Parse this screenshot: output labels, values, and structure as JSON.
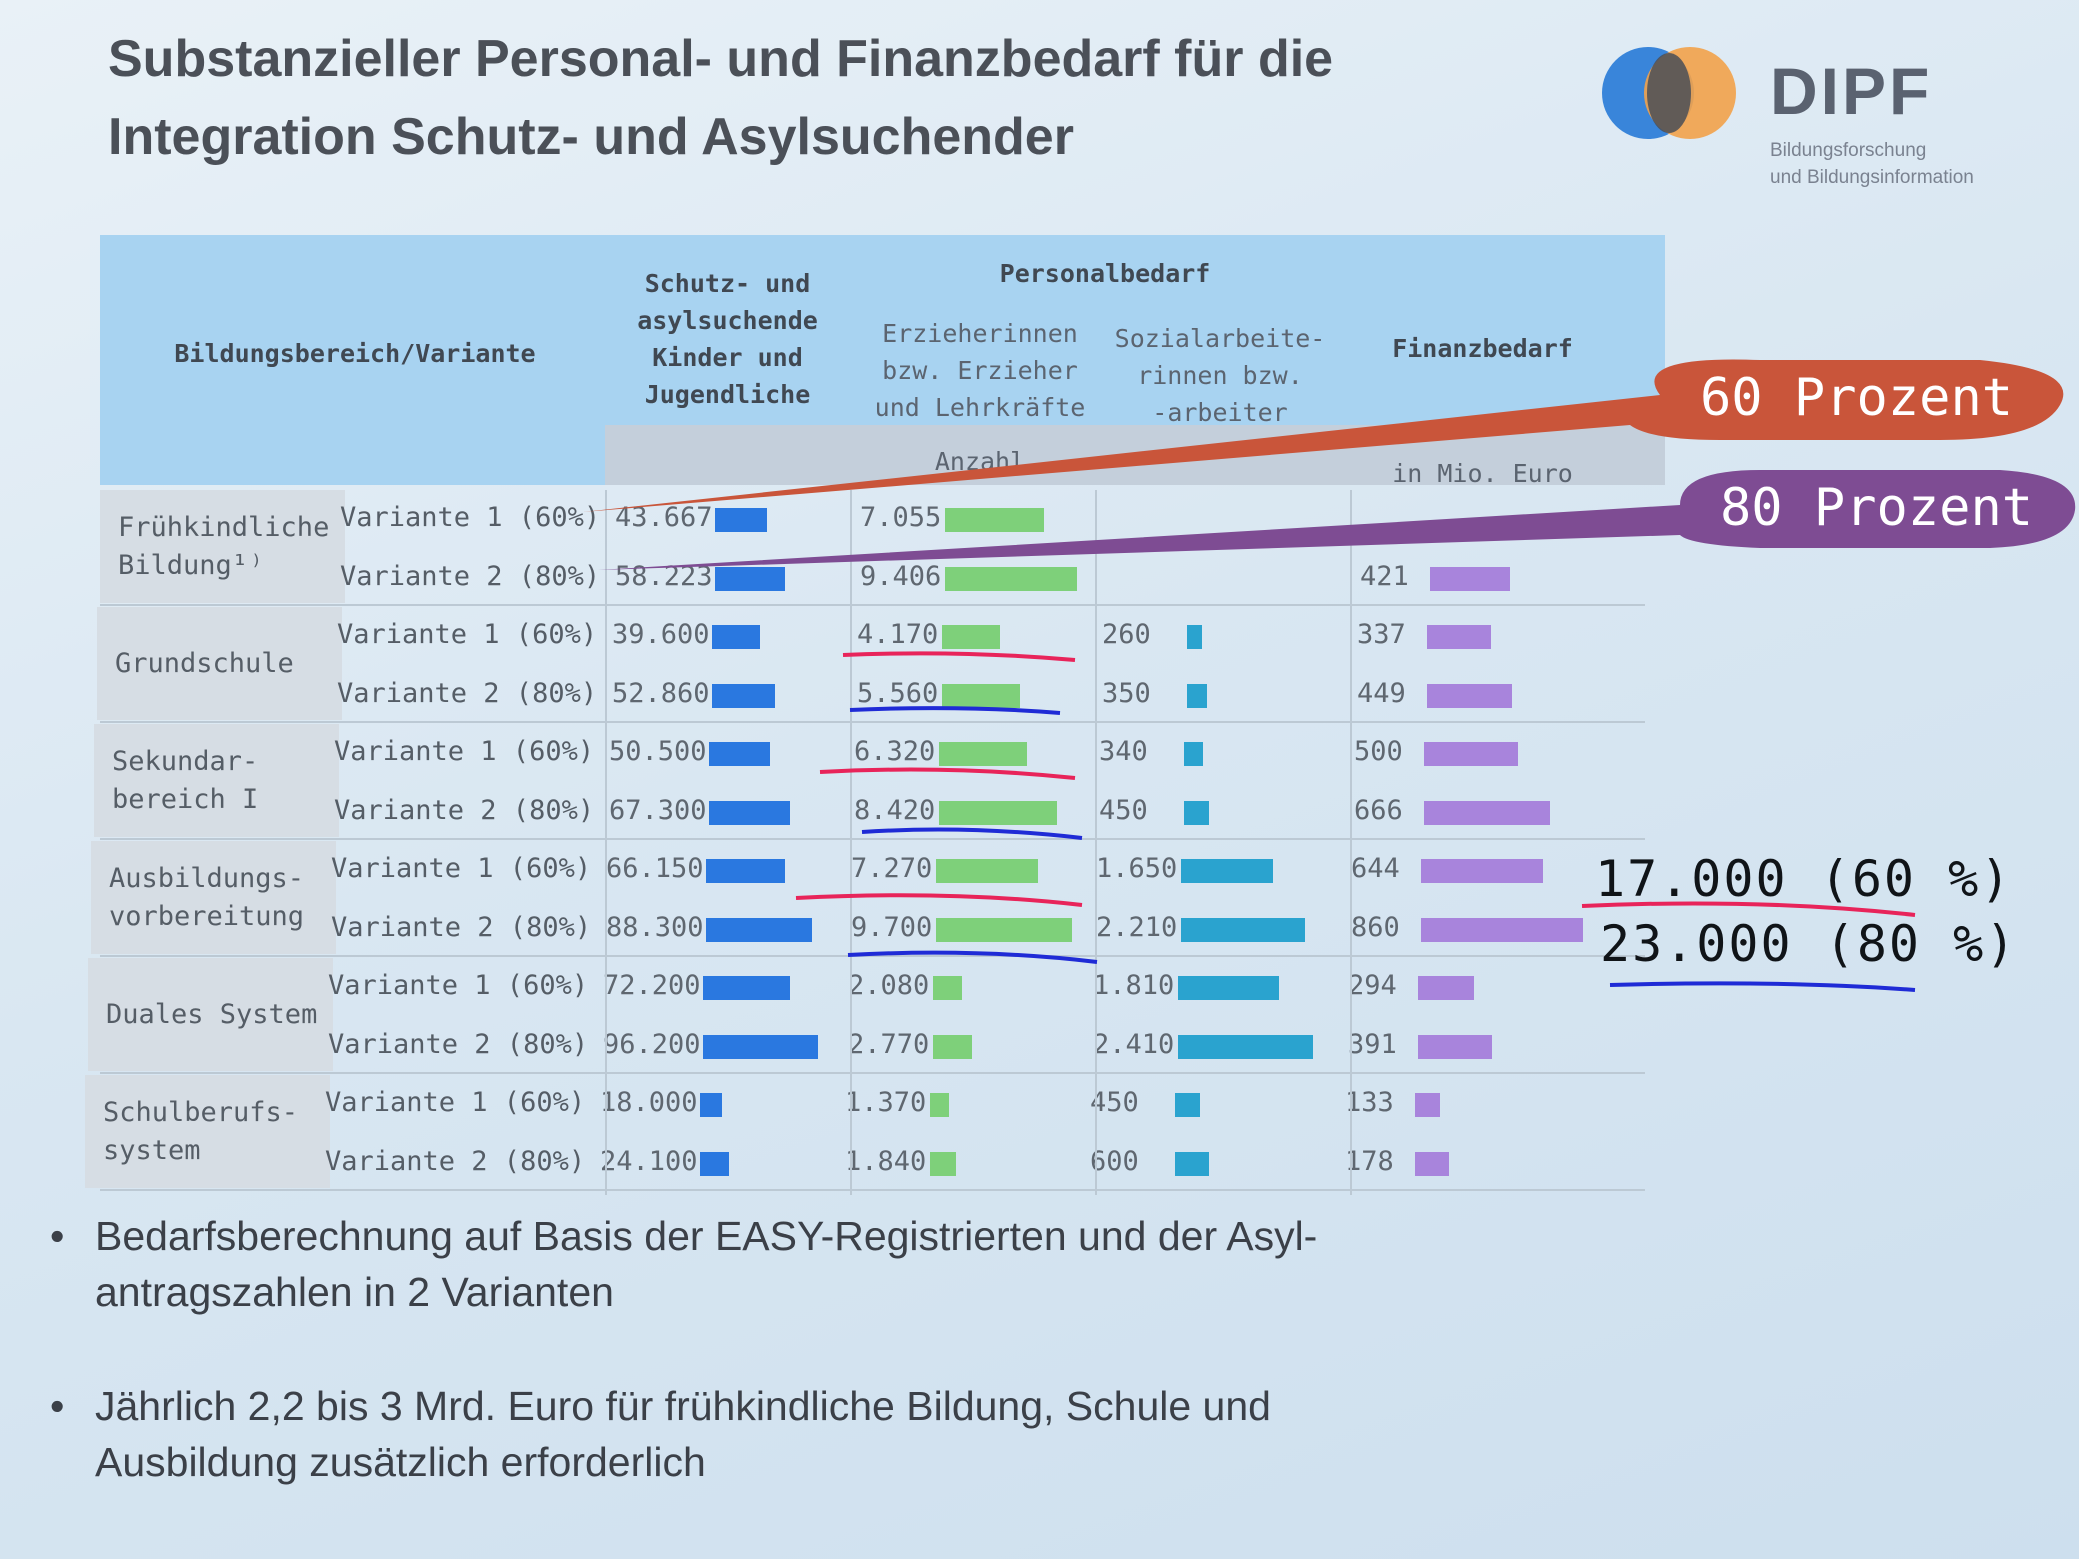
{
  "title_line1": "Substanzieller Personal- und Finanzbedarf für die",
  "title_line2": "Integration Schutz- und Asylsuchender",
  "logo": {
    "name": "DIPF",
    "subtitle_line1": "Bildungsforschung",
    "subtitle_line2": "und Bildungsinformation",
    "circle_left_color": "#2f7fd8",
    "circle_right_color": "#f2a24a"
  },
  "table": {
    "headers": {
      "area": "Bildungsbereich/Variante",
      "children_1": "Schutz- und",
      "children_2": "asylsuchende",
      "children_3": "Kinder und",
      "children_4": "Jugendliche",
      "personal": "Personalbedarf",
      "educators_1": "Erzieherinnen",
      "educators_2": "bzw. Erzieher",
      "educators_3": "und Lehrkräfte",
      "social_1": "Sozialarbeite-",
      "social_2": "rinnen bzw.",
      "social_3": "-arbeiter",
      "finance": "Finanzbedarf",
      "count_unit": "Anzahl",
      "money_unit": "in Mio. Euro"
    },
    "groups": [
      {
        "label_1": "Frühkindliche",
        "label_2": "Bildung¹⁾",
        "rows": [
          {
            "variant": "Variante 1 (60%)",
            "children": "43.667",
            "educators": "7.055",
            "social": "",
            "finance": ""
          },
          {
            "variant": "Variante 2 (80%)",
            "children": "58.223",
            "educators": "9.406",
            "social": "",
            "finance": "421"
          }
        ]
      },
      {
        "label_1": "Grundschule",
        "label_2": "",
        "rows": [
          {
            "variant": "Variante 1 (60%)",
            "children": "39.600",
            "educators": "4.170",
            "social": "260",
            "finance": "337"
          },
          {
            "variant": "Variante 2 (80%)",
            "children": "52.860",
            "educators": "5.560",
            "social": "350",
            "finance": "449"
          }
        ]
      },
      {
        "label_1": "Sekundar-",
        "label_2": "bereich I",
        "rows": [
          {
            "variant": "Variante 1 (60%)",
            "children": "50.500",
            "educators": "6.320",
            "social": "340",
            "finance": "500"
          },
          {
            "variant": "Variante 2 (80%)",
            "children": "67.300",
            "educators": "8.420",
            "social": "450",
            "finance": "666"
          }
        ]
      },
      {
        "label_1": "Ausbildungs-",
        "label_2": "vorbereitung",
        "rows": [
          {
            "variant": "Variante 1 (60%)",
            "children": "66.150",
            "educators": "7.270",
            "social": "1.650",
            "finance": "644"
          },
          {
            "variant": "Variante 2 (80%)",
            "children": "88.300",
            "educators": "9.700",
            "social": "2.210",
            "finance": "860"
          }
        ]
      },
      {
        "label_1": "Duales System",
        "label_2": "",
        "rows": [
          {
            "variant": "Variante 1 (60%)",
            "children": "72.200",
            "educators": "2.080",
            "social": "1.810",
            "finance": "294"
          },
          {
            "variant": "Variante 2 (80%)",
            "children": "96.200",
            "educators": "2.770",
            "social": "2.410",
            "finance": "391"
          }
        ]
      },
      {
        "label_1": "Schulberufs-",
        "label_2": "system",
        "rows": [
          {
            "variant": "Variante 1 (60%)",
            "children": "18.000",
            "educators": "1.370",
            "social": "450",
            "finance": "133"
          },
          {
            "variant": "Variante 2 (80%)",
            "children": "24.100",
            "educators": "1.840",
            "social": "600",
            "finance": "178"
          }
        ]
      }
    ]
  },
  "callouts": {
    "c60": "60 Prozent",
    "c80": "80 Prozent",
    "c60_color": "#c9553a",
    "c80_color": "#7e4c93"
  },
  "annotations": {
    "a60": "17.000 (60 %)",
    "a80": "23.000 (80 %)",
    "red_color": "#e8245a",
    "blue_color": "#1f2bd6"
  },
  "bullets": {
    "b1_line1": "Bedarfsberechnung auf Basis der EASY-Registrierten und der Asyl-",
    "b1_line2": "antragszahlen in 2 Varianten",
    "b2_line1": "Jährlich 2,2 bis 3 Mrd. Euro für frühkindliche Bildung, Schule und",
    "b2_line2": "Ausbildung zusätzlich erforderlich"
  }
}
